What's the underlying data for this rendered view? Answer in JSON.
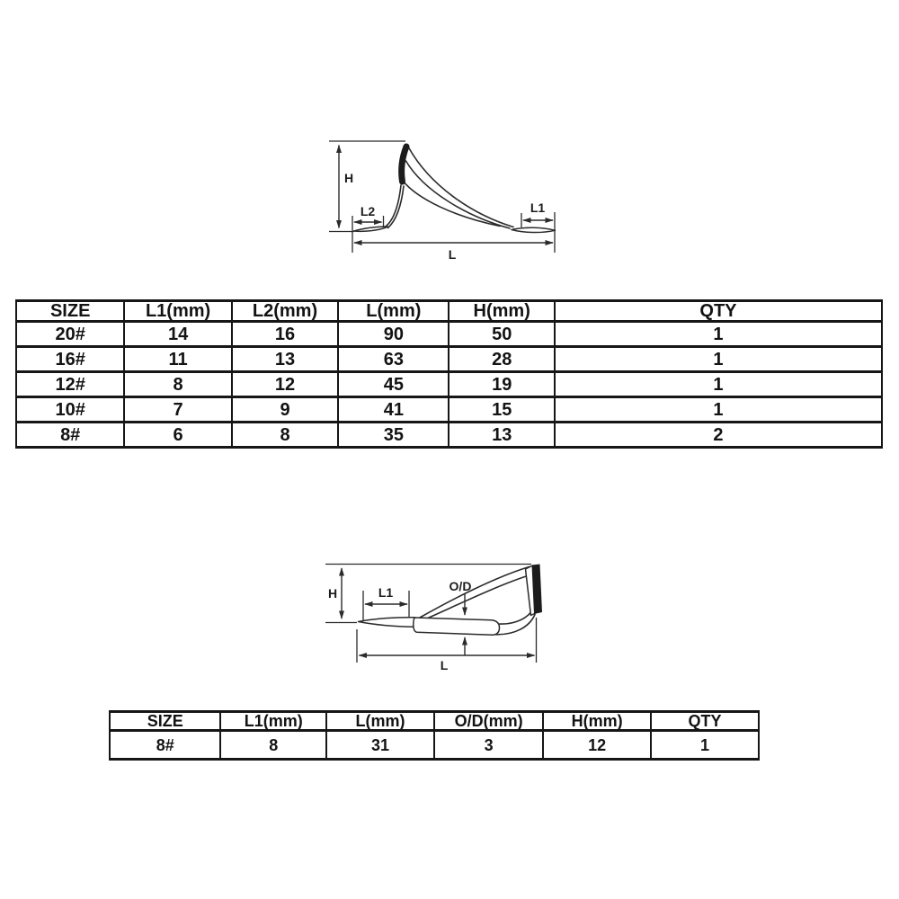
{
  "colors": {
    "ink": "#2b2b2b",
    "table_line": "#161616",
    "background": "#ffffff"
  },
  "diagram_top": {
    "labels": {
      "h": "H",
      "l2": "L2",
      "l1": "L1",
      "l": "L"
    }
  },
  "table_top": {
    "headers": [
      "SIZE",
      "L1(mm)",
      "L2(mm)",
      "L(mm)",
      "H(mm)",
      "QTY"
    ],
    "rows": [
      [
        "20#",
        "14",
        "16",
        "90",
        "50",
        "1"
      ],
      [
        "16#",
        "11",
        "13",
        "63",
        "28",
        "1"
      ],
      [
        "12#",
        "8",
        "12",
        "45",
        "19",
        "1"
      ],
      [
        "10#",
        "7",
        "9",
        "41",
        "15",
        "1"
      ],
      [
        "8#",
        "6",
        "8",
        "35",
        "13",
        "2"
      ]
    ]
  },
  "diagram_bottom": {
    "labels": {
      "h": "H",
      "l1": "L1",
      "od": "O/D",
      "l": "L"
    }
  },
  "table_bottom": {
    "headers": [
      "SIZE",
      "L1(mm)",
      "L(mm)",
      "O/D(mm)",
      "H(mm)",
      "QTY"
    ],
    "rows": [
      [
        "8#",
        "8",
        "31",
        "3",
        "12",
        "1"
      ]
    ]
  }
}
